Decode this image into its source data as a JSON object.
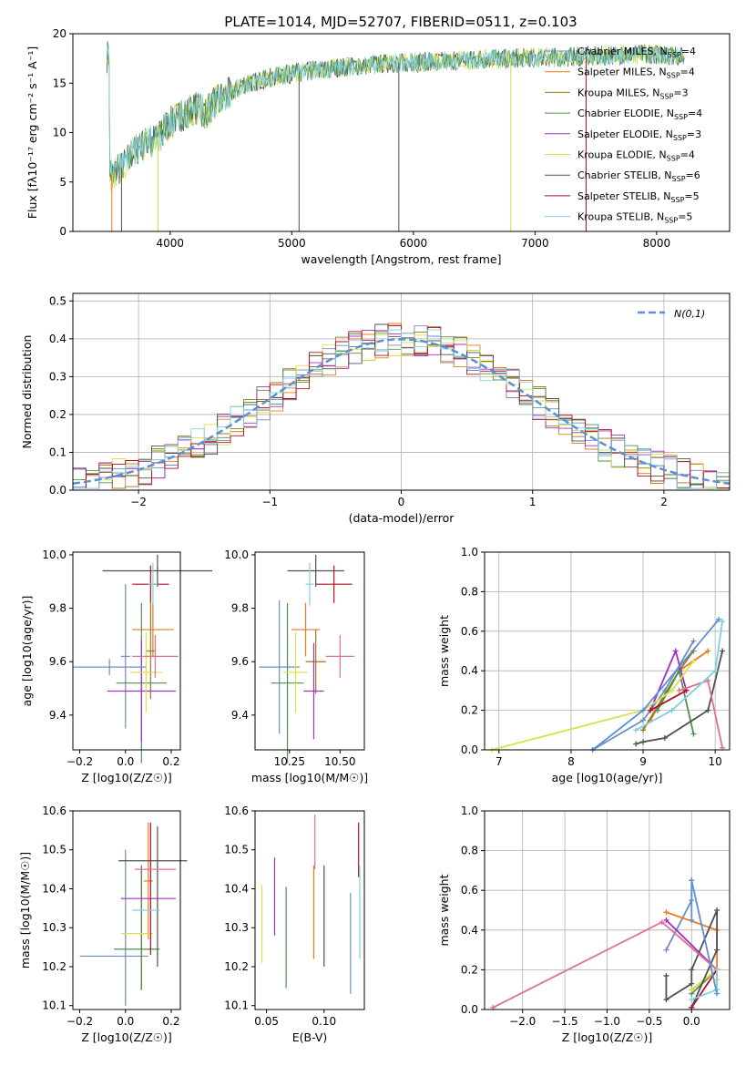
{
  "figure": {
    "title": "PLATE=1014, MJD=52707, FIBERID=0511, z=0.103"
  },
  "legend_entries": [
    {
      "label": "Chabrier MILES, N",
      "sub": "SSP",
      "tail": "=4",
      "color": "#6c8ebf"
    },
    {
      "label": "Salpeter MILES, N",
      "sub": "SSP",
      "tail": "=4",
      "color": "#e87a1f"
    },
    {
      "label": "Kroupa MILES, N",
      "sub": "SSP",
      "tail": "=3",
      "color": "#9c7a18"
    },
    {
      "label": "Chabrier ELODIE, N",
      "sub": "SSP",
      "tail": "=4",
      "color": "#4f8f4f"
    },
    {
      "label": "Salpeter ELODIE, N",
      "sub": "SSP",
      "tail": "=3",
      "color": "#a030c0"
    },
    {
      "label": "Kroupa ELODIE, N",
      "sub": "SSP",
      "tail": "=4",
      "color": "#d8e04a"
    },
    {
      "label": "Chabrier STELIB, N",
      "sub": "SSP",
      "tail": "=6",
      "color": "#505050"
    },
    {
      "label": "Salpeter STELIB, N",
      "sub": "SSP",
      "tail": "=5",
      "color": "#b01020"
    },
    {
      "label": "Kroupa STELIB, N",
      "sub": "SSP",
      "tail": "=5",
      "color": "#80d0e0"
    }
  ],
  "chart_data": [
    {
      "id": "spectrum",
      "type": "line",
      "xlabel": "wavelength [Angstrom, rest frame]",
      "ylabel": "Flux [fλ10⁻¹⁷ erg cm⁻² s⁻¹ A⁻¹]",
      "xlim": [
        3200,
        8600
      ],
      "ylim": [
        0,
        20
      ],
      "xticks": [
        4000,
        5000,
        6000,
        7000,
        8000
      ],
      "yticks": [
        0,
        5,
        10,
        15,
        20
      ],
      "envelope": {
        "x": [
          3500,
          3600,
          3700,
          3800,
          3900,
          4000,
          4100,
          4200,
          4300,
          4400,
          4500,
          4600,
          4800,
          5000,
          5200,
          5400,
          5600,
          5800,
          6000,
          6200,
          6400,
          6600,
          6800,
          7000,
          7200,
          7400,
          7600,
          7800,
          8000,
          8200
        ],
        "y": [
          5.5,
          6.5,
          8.0,
          9.0,
          9.5,
          11.0,
          11.8,
          12.5,
          12.0,
          13.5,
          14.0,
          14.8,
          15.5,
          16.0,
          16.3,
          16.6,
          16.8,
          17.0,
          17.1,
          17.2,
          17.3,
          17.4,
          17.5,
          17.6,
          17.6,
          17.7,
          17.8,
          17.9,
          17.9,
          17.7
        ]
      }
    },
    {
      "id": "residuals",
      "type": "line",
      "xlabel": "(data-model)/error",
      "ylabel": "Normed distribution",
      "xlim": [
        -2.5,
        2.5
      ],
      "ylim": [
        0,
        0.52
      ],
      "xticks": [
        -2,
        -1,
        0,
        1,
        2
      ],
      "xtick_labels": [
        "−2",
        "−1",
        "0",
        "1",
        "2"
      ],
      "yticks": [
        0,
        0.1,
        0.2,
        0.3,
        0.4,
        0.5
      ],
      "ytick_labels": [
        "0.0",
        "0.1",
        "0.2",
        "0.3",
        "0.4",
        "0.5"
      ],
      "legend": "N(0,1)",
      "legend_color": "#5b8fd6"
    },
    {
      "id": "age-vs-z",
      "type": "scatter",
      "xlabel": "Z [log10(Z/Z☉)]",
      "ylabel": "age  [log10(age/yr)]",
      "xlim": [
        -0.23,
        0.24
      ],
      "ylim": [
        9.27,
        10.01
      ],
      "xticks": [
        -0.2,
        0,
        0.2
      ],
      "xtick_labels": [
        "−0.2",
        "0.0",
        "0.2"
      ],
      "yticks": [
        9.4,
        9.6,
        9.8,
        10.0
      ],
      "ytick_labels": [
        "9.4",
        "9.6",
        "9.8",
        "10.0"
      ],
      "points": [
        {
          "x": 0.0,
          "y": 9.62,
          "xerr": 0.02,
          "yerr": 0.27,
          "color": "#6c8ebf"
        },
        {
          "x": 0.12,
          "y": 9.72,
          "xerr": 0.09,
          "yerr": 0.1,
          "color": "#e87a1f"
        },
        {
          "x": 0.11,
          "y": 9.64,
          "xerr": 0.02,
          "yerr": 0.18,
          "color": "#9c7a18"
        },
        {
          "x": 0.07,
          "y": 9.52,
          "xerr": 0.11,
          "yerr": 0.3,
          "color": "#4f8f4f"
        },
        {
          "x": 0.07,
          "y": 9.49,
          "xerr": 0.15,
          "yerr": 0.19,
          "color": "#a030c0"
        },
        {
          "x": 0.09,
          "y": 9.56,
          "xerr": 0.07,
          "yerr": 0.15,
          "color": "#d8e04a"
        },
        {
          "x": 0.14,
          "y": 9.94,
          "xerr": 0.24,
          "yerr": 0.06,
          "color": "#505050"
        },
        {
          "x": 0.11,
          "y": 9.89,
          "xerr": 0.08,
          "yerr": 0.07,
          "color": "#b01020"
        },
        {
          "x": 0.13,
          "y": 9.62,
          "xerr": 0.1,
          "yerr": 0.08,
          "color": "#e07090"
        },
        {
          "x": 0.12,
          "y": 9.89,
          "xerr": 0.02,
          "yerr": 0.08,
          "color": "#80d0e0"
        },
        {
          "x": -0.07,
          "y": 9.58,
          "xerr": 0.16,
          "yerr": 0.03,
          "color": "#6c8ebf"
        }
      ]
    },
    {
      "id": "age-vs-mass",
      "type": "scatter",
      "xlabel": "mass [log10(M/M☉)]",
      "ylabel": "",
      "xlim": [
        10.08,
        10.62
      ],
      "ylim": [
        9.27,
        10.01
      ],
      "xticks": [
        10.25,
        10.5
      ],
      "xtick_labels": [
        "10.25",
        "10.50"
      ],
      "yticks": [
        9.4,
        9.6,
        9.8,
        10.0
      ],
      "ytick_labels": [
        "9.4",
        "9.6",
        "9.8",
        "10.0"
      ],
      "points": [
        {
          "x": 10.2,
          "y": 9.58,
          "xerr": 0.1,
          "yerr": 0.25,
          "color": "#6c8ebf"
        },
        {
          "x": 10.33,
          "y": 9.72,
          "xerr": 0.07,
          "yerr": 0.1,
          "color": "#e87a1f"
        },
        {
          "x": 10.38,
          "y": 9.6,
          "xerr": 0.05,
          "yerr": 0.12,
          "color": "#9c7a18"
        },
        {
          "x": 10.24,
          "y": 9.52,
          "xerr": 0.08,
          "yerr": 0.3,
          "color": "#4f8f4f"
        },
        {
          "x": 10.37,
          "y": 9.49,
          "xerr": 0.05,
          "yerr": 0.18,
          "color": "#a030c0"
        },
        {
          "x": 10.28,
          "y": 9.56,
          "xerr": 0.06,
          "yerr": 0.15,
          "color": "#d8e04a"
        },
        {
          "x": 10.38,
          "y": 9.94,
          "xerr": 0.14,
          "yerr": 0.06,
          "color": "#505050"
        },
        {
          "x": 10.47,
          "y": 9.89,
          "xerr": 0.09,
          "yerr": 0.07,
          "color": "#b01020"
        },
        {
          "x": 10.5,
          "y": 9.62,
          "xerr": 0.07,
          "yerr": 0.08,
          "color": "#e07090"
        },
        {
          "x": 10.35,
          "y": 9.89,
          "xerr": 0.02,
          "yerr": 0.08,
          "color": "#80d0e0"
        }
      ]
    },
    {
      "id": "massweight-vs-age",
      "type": "line",
      "xlabel": "age  [log10(age/yr)]",
      "ylabel": "mass weight",
      "xlim": [
        6.8,
        10.2
      ],
      "ylim": [
        0,
        1
      ],
      "xticks": [
        7,
        8,
        9,
        10
      ],
      "yticks": [
        0,
        0.2,
        0.4,
        0.6,
        0.8,
        1.0
      ],
      "ytick_labels": [
        "0.0",
        "0.2",
        "0.4",
        "0.6",
        "0.8",
        "1.0"
      ],
      "series": [
        {
          "color": "#6c8ebf",
          "x": [
            8.3,
            9.0,
            9.3,
            9.7
          ],
          "y": [
            0.0,
            0.15,
            0.3,
            0.55
          ]
        },
        {
          "color": "#e87a1f",
          "x": [
            9.1,
            9.5,
            9.9
          ],
          "y": [
            0.15,
            0.4,
            0.5
          ]
        },
        {
          "color": "#9c7a18",
          "x": [
            9.0,
            9.5,
            9.7
          ],
          "y": [
            0.1,
            0.4,
            0.5
          ]
        },
        {
          "color": "#4f8f4f",
          "x": [
            9.2,
            9.5,
            9.7
          ],
          "y": [
            0.2,
            0.4,
            0.08
          ]
        },
        {
          "color": "#a030c0",
          "x": [
            9.1,
            9.45,
            9.6
          ],
          "y": [
            0.2,
            0.5,
            0.3
          ]
        },
        {
          "color": "#d8e04a",
          "x": [
            6.9,
            9.0,
            9.4,
            9.7
          ],
          "y": [
            0.0,
            0.2,
            0.3,
            0.45
          ]
        },
        {
          "color": "#505050",
          "x": [
            8.9,
            9.0,
            9.3,
            9.9,
            10.1
          ],
          "y": [
            0.03,
            0.04,
            0.06,
            0.2,
            0.5
          ]
        },
        {
          "color": "#b01020",
          "x": [
            9.1,
            9.6
          ],
          "y": [
            0.2,
            0.3
          ]
        },
        {
          "color": "#e07090",
          "x": [
            9.5,
            9.9,
            10.1
          ],
          "y": [
            0.3,
            0.35,
            0.01
          ]
        },
        {
          "color": "#80d0e0",
          "x": [
            8.9,
            9.4,
            10.0,
            10.1
          ],
          "y": [
            0.1,
            0.2,
            0.4,
            0.65
          ]
        },
        {
          "color": "#5b8fd6",
          "x": [
            8.3,
            9.0,
            10.05
          ],
          "y": [
            0.0,
            0.2,
            0.66
          ]
        }
      ]
    },
    {
      "id": "mass-vs-z",
      "type": "scatter",
      "xlabel": "Z [log10(Z/Z☉)]",
      "ylabel": "mass [log10(M/M☉)]",
      "xlim": [
        -0.23,
        0.24
      ],
      "ylim": [
        10.09,
        10.6
      ],
      "xticks": [
        -0.2,
        0,
        0.2
      ],
      "xtick_labels": [
        "−0.2",
        "0.0",
        "0.2"
      ],
      "yticks": [
        10.1,
        10.2,
        10.3,
        10.4,
        10.5,
        10.6
      ],
      "ytick_labels": [
        "10.1",
        "10.2",
        "10.3",
        "10.4",
        "10.5",
        "10.6"
      ],
      "points": [
        {
          "x": -0.05,
          "y": 10.227,
          "xerr": 0.15,
          "yerr": 0.0,
          "color": "#6c8ebf"
        },
        {
          "x": 0.0,
          "y": 10.3,
          "xerr": 0.0,
          "yerr": 0.2,
          "color": "#6c8ebf"
        },
        {
          "x": 0.1,
          "y": 10.42,
          "xerr": 0.02,
          "yerr": 0.15,
          "color": "#e87a1f"
        },
        {
          "x": 0.07,
          "y": 10.3,
          "xerr": 0.0,
          "yerr": 0.16,
          "color": "#9c7a18"
        },
        {
          "x": 0.05,
          "y": 10.245,
          "xerr": 0.1,
          "yerr": 0.0,
          "color": "#4f8f4f"
        },
        {
          "x": 0.07,
          "y": 10.3,
          "xerr": 0.0,
          "yerr": 0.16,
          "color": "#4f8f4f"
        },
        {
          "x": 0.1,
          "y": 10.375,
          "xerr": 0.12,
          "yerr": 0.0,
          "color": "#a030c0"
        },
        {
          "x": 0.05,
          "y": 10.285,
          "xerr": 0.07,
          "yerr": 0.0,
          "color": "#d8e04a"
        },
        {
          "x": 0.12,
          "y": 10.472,
          "xerr": 0.15,
          "yerr": 0.0,
          "color": "#505050"
        },
        {
          "x": 0.14,
          "y": 10.38,
          "xerr": 0.0,
          "yerr": 0.18,
          "color": "#505050"
        },
        {
          "x": 0.11,
          "y": 10.4,
          "xerr": 0.0,
          "yerr": 0.17,
          "color": "#b01020"
        },
        {
          "x": 0.13,
          "y": 10.45,
          "xerr": 0.09,
          "yerr": 0.0,
          "color": "#e07090"
        },
        {
          "x": 0.09,
          "y": 10.345,
          "xerr": 0.06,
          "yerr": 0.0,
          "color": "#80d0e0"
        }
      ]
    },
    {
      "id": "mass-vs-ebv",
      "type": "scatter",
      "xlabel": "E(B-V)",
      "ylabel": "",
      "xlim": [
        0.04,
        0.135
      ],
      "ylim": [
        10.09,
        10.6
      ],
      "xticks": [
        0.05,
        0.1
      ],
      "xtick_labels": [
        "0.05",
        "0.10"
      ],
      "yticks": [
        10.1,
        10.2,
        10.3,
        10.4,
        10.5,
        10.6
      ],
      "ytick_labels": [
        "10.1",
        "10.2",
        "10.3",
        "10.4",
        "10.5",
        "10.6"
      ],
      "points": [
        {
          "x": 0.046,
          "y": 10.31,
          "xerr": 0,
          "yerr": 0.1,
          "color": "#d8e04a"
        },
        {
          "x": 0.057,
          "y": 10.38,
          "xerr": 0,
          "yerr": 0.1,
          "color": "#a030c0"
        },
        {
          "x": 0.067,
          "y": 10.275,
          "xerr": 0,
          "yerr": 0.13,
          "color": "#4f8f4f"
        },
        {
          "x": 0.091,
          "y": 10.34,
          "xerr": 0,
          "yerr": 0.12,
          "color": "#e87a1f"
        },
        {
          "x": 0.092,
          "y": 10.52,
          "xerr": 0,
          "yerr": 0.07,
          "color": "#e07090"
        },
        {
          "x": 0.1,
          "y": 10.33,
          "xerr": 0,
          "yerr": 0.13,
          "color": "#505050"
        },
        {
          "x": 0.123,
          "y": 10.26,
          "xerr": 0,
          "yerr": 0.13,
          "color": "#6c8ebf"
        },
        {
          "x": 0.13,
          "y": 10.5,
          "xerr": 0,
          "yerr": 0.07,
          "color": "#b01020"
        },
        {
          "x": 0.131,
          "y": 10.34,
          "xerr": 0,
          "yerr": 0.12,
          "color": "#80d0e0"
        }
      ]
    },
    {
      "id": "massweight-vs-z",
      "type": "line",
      "xlabel": "Z [log10(Z/Z☉)]",
      "ylabel": "mass weight",
      "xlim": [
        -2.45,
        0.45
      ],
      "ylim": [
        0,
        1
      ],
      "xticks": [
        -2.0,
        -1.5,
        -1.0,
        -0.5,
        0.0
      ],
      "xtick_labels": [
        "−2.0",
        "−1.5",
        "−1.0",
        "−0.5",
        "0.0"
      ],
      "yticks": [
        0,
        0.2,
        0.4,
        0.6,
        0.8,
        1.0
      ],
      "ytick_labels": [
        "0.0",
        "0.2",
        "0.4",
        "0.6",
        "0.8",
        "1.0"
      ],
      "series": [
        {
          "color": "#6c8ebf",
          "x": [
            -0.3,
            0.0,
            0.0
          ],
          "y": [
            0.3,
            0.55,
            0.65
          ]
        },
        {
          "color": "#e87a1f",
          "x": [
            -0.3,
            0.3,
            0.3
          ],
          "y": [
            0.49,
            0.4,
            0.1
          ]
        },
        {
          "color": "#9c7a18",
          "x": [
            0.0,
            0.3,
            0.3
          ],
          "y": [
            0.1,
            0.2,
            0.15
          ]
        },
        {
          "color": "#4f8f4f",
          "x": [
            0.0,
            0.3
          ],
          "y": [
            0.08,
            0.2
          ]
        },
        {
          "color": "#a030c0",
          "x": [
            -0.3,
            0.3
          ],
          "y": [
            0.45,
            0.2
          ]
        },
        {
          "color": "#d8e04a",
          "x": [
            0.0,
            0.3,
            0.3
          ],
          "y": [
            0.1,
            0.2,
            0.15
          ]
        },
        {
          "color": "#505050",
          "x": [
            -0.3,
            -0.3,
            0.0,
            0.0,
            0.3,
            0.3,
            0.0
          ],
          "y": [
            0.17,
            0.05,
            0.13,
            0.2,
            0.5,
            0.3,
            0.01
          ]
        },
        {
          "color": "#b01020",
          "x": [
            0.0,
            0.3
          ],
          "y": [
            0.01,
            0.2
          ]
        },
        {
          "color": "#e07090",
          "x": [
            -2.35,
            -0.35,
            0.3,
            0.3
          ],
          "y": [
            0.01,
            0.44,
            0.2,
            0.1
          ]
        },
        {
          "color": "#80d0e0",
          "x": [
            0.0,
            0.3,
            0.3
          ],
          "y": [
            0.05,
            0.1,
            0.2
          ]
        },
        {
          "color": "#5b8fd6",
          "x": [
            0.0,
            0.0,
            0.3
          ],
          "y": [
            0.45,
            0.65,
            0.08
          ]
        }
      ]
    }
  ]
}
